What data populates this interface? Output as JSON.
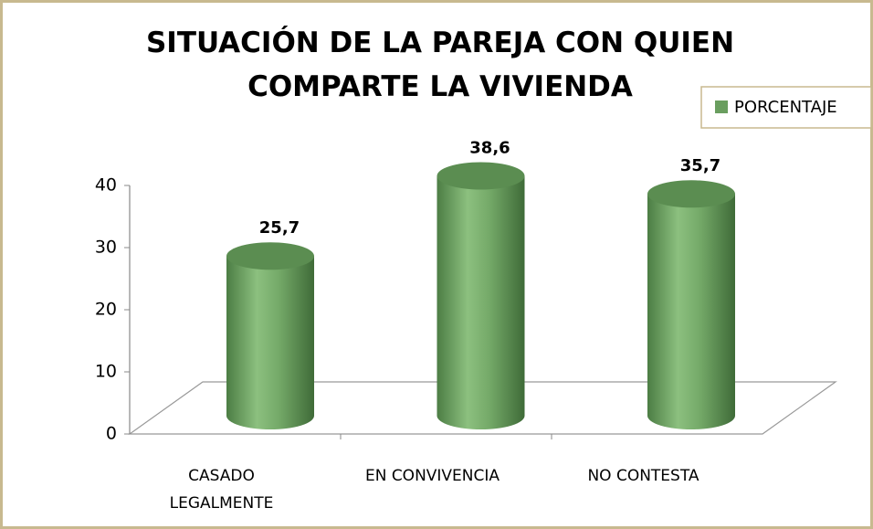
{
  "chart_data": {
    "type": "bar",
    "title": "SITUACIÓN DE LA PAREJA CON QUIEN COMPARTE LA VIVIENDA",
    "categories": [
      "CASADO LEGALMENTE",
      "EN CONVIVENCIA",
      "NO CONTESTA"
    ],
    "series": [
      {
        "name": "PORCENTAJE",
        "color": "#6a9e5f",
        "values": [
          25.7,
          38.6,
          35.7
        ],
        "value_labels": [
          "25,7",
          "38,6",
          "35,7"
        ]
      }
    ],
    "ylim": [
      0,
      40
    ],
    "yticks": [
      0,
      10,
      20,
      30,
      40
    ],
    "legend": "right"
  }
}
